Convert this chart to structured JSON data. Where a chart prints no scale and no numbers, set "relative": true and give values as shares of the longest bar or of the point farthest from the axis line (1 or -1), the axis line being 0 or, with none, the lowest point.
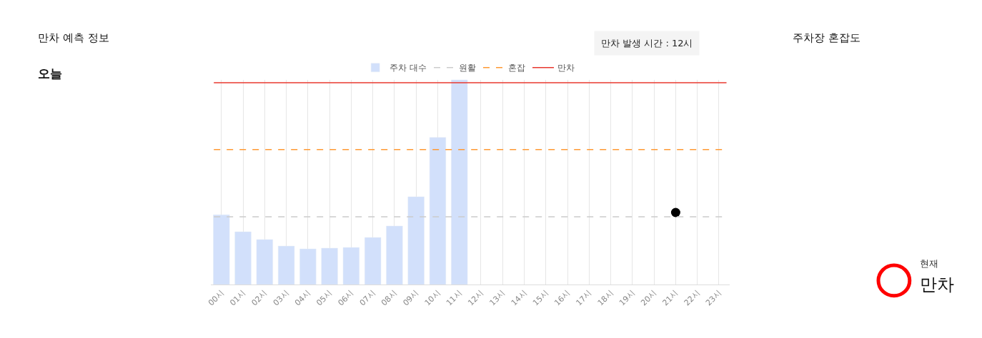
{
  "chart_data": {
    "type": "bar",
    "title": "만차 예측 정보",
    "subtitle": "오늘",
    "categories": [
      "00시",
      "01시",
      "02시",
      "03시",
      "04시",
      "05시",
      "06시",
      "07시",
      "08시",
      "09시",
      "10시",
      "11시",
      "12시",
      "13시",
      "14시",
      "15시",
      "16시",
      "17시",
      "18시",
      "19시",
      "20시",
      "21시",
      "22시",
      "23시"
    ],
    "relative": true,
    "series": [
      {
        "name": "주차 대수",
        "color": "#d2e0fb",
        "values": [
          0.341,
          0.258,
          0.22,
          0.188,
          0.174,
          0.178,
          0.181,
          0.23,
          0.286,
          0.429,
          0.718,
          1,
          null,
          null,
          null,
          null,
          null,
          null,
          null,
          null,
          null,
          null,
          null,
          null
        ]
      },
      {
        "type": "scatter",
        "color": "#000000",
        "x": [
          "21시"
        ],
        "values": [
          0.352
        ]
      }
    ],
    "ref_lines": [
      {
        "axis": "y",
        "value": 0.331,
        "label": "원활",
        "color": "#cccccc",
        "line_style": "dashed"
      },
      {
        "axis": "y",
        "value": 0.659,
        "label": "혼잡",
        "color": "#ff9933",
        "line_style": "dashed"
      },
      {
        "axis": "y",
        "value": 0.986,
        "label": "만차",
        "color": "#e8382f",
        "line_style": "solid"
      }
    ],
    "annotations": [
      "만차 발생 시간 : 12시",
      "주차장 혼잡도",
      "현재",
      "만차"
    ],
    "grid": "x",
    "legend": "top",
    "marker": "circle"
  }
}
